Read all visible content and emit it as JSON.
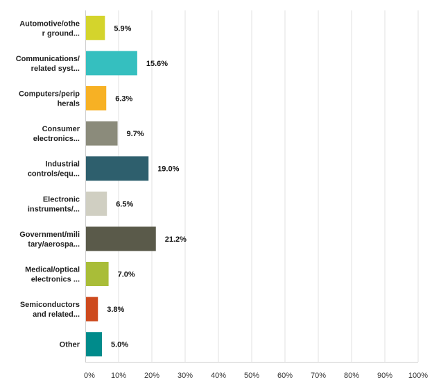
{
  "chart_data": {
    "type": "bar",
    "orientation": "horizontal",
    "categories": [
      [
        "Automotive/othe",
        "r ground..."
      ],
      [
        "Communications/",
        "related syst..."
      ],
      [
        "Computers/perip",
        "herals"
      ],
      [
        "Consumer",
        "electronics..."
      ],
      [
        "Industrial",
        "controls/equ..."
      ],
      [
        "Electronic",
        "instruments/..."
      ],
      [
        "Government/mili",
        "tary/aerospa..."
      ],
      [
        "Medical/optical",
        "electronics ..."
      ],
      [
        "Semiconductors",
        "and related..."
      ],
      [
        "Other"
      ]
    ],
    "values": [
      5.9,
      15.6,
      6.3,
      9.7,
      19.0,
      6.5,
      21.2,
      7.0,
      3.8,
      5.0
    ],
    "value_labels": [
      "5.9%",
      "15.6%",
      "6.3%",
      "9.7%",
      "19.0%",
      "6.5%",
      "21.2%",
      "7.0%",
      "3.8%",
      "5.0%"
    ],
    "colors": [
      "#d4d42c",
      "#35bfbf",
      "#f7b124",
      "#8b8b7b",
      "#2e5f6d",
      "#d0cfc2",
      "#5a5a4a",
      "#a9bd38",
      "#cd4a1e",
      "#008b8b"
    ],
    "xlim": [
      0,
      100
    ],
    "xticks": [
      "0%",
      "10%",
      "20%",
      "30%",
      "40%",
      "50%",
      "60%",
      "70%",
      "80%",
      "90%",
      "100%"
    ],
    "grid": true,
    "title": "",
    "xlabel": "",
    "ylabel": ""
  }
}
